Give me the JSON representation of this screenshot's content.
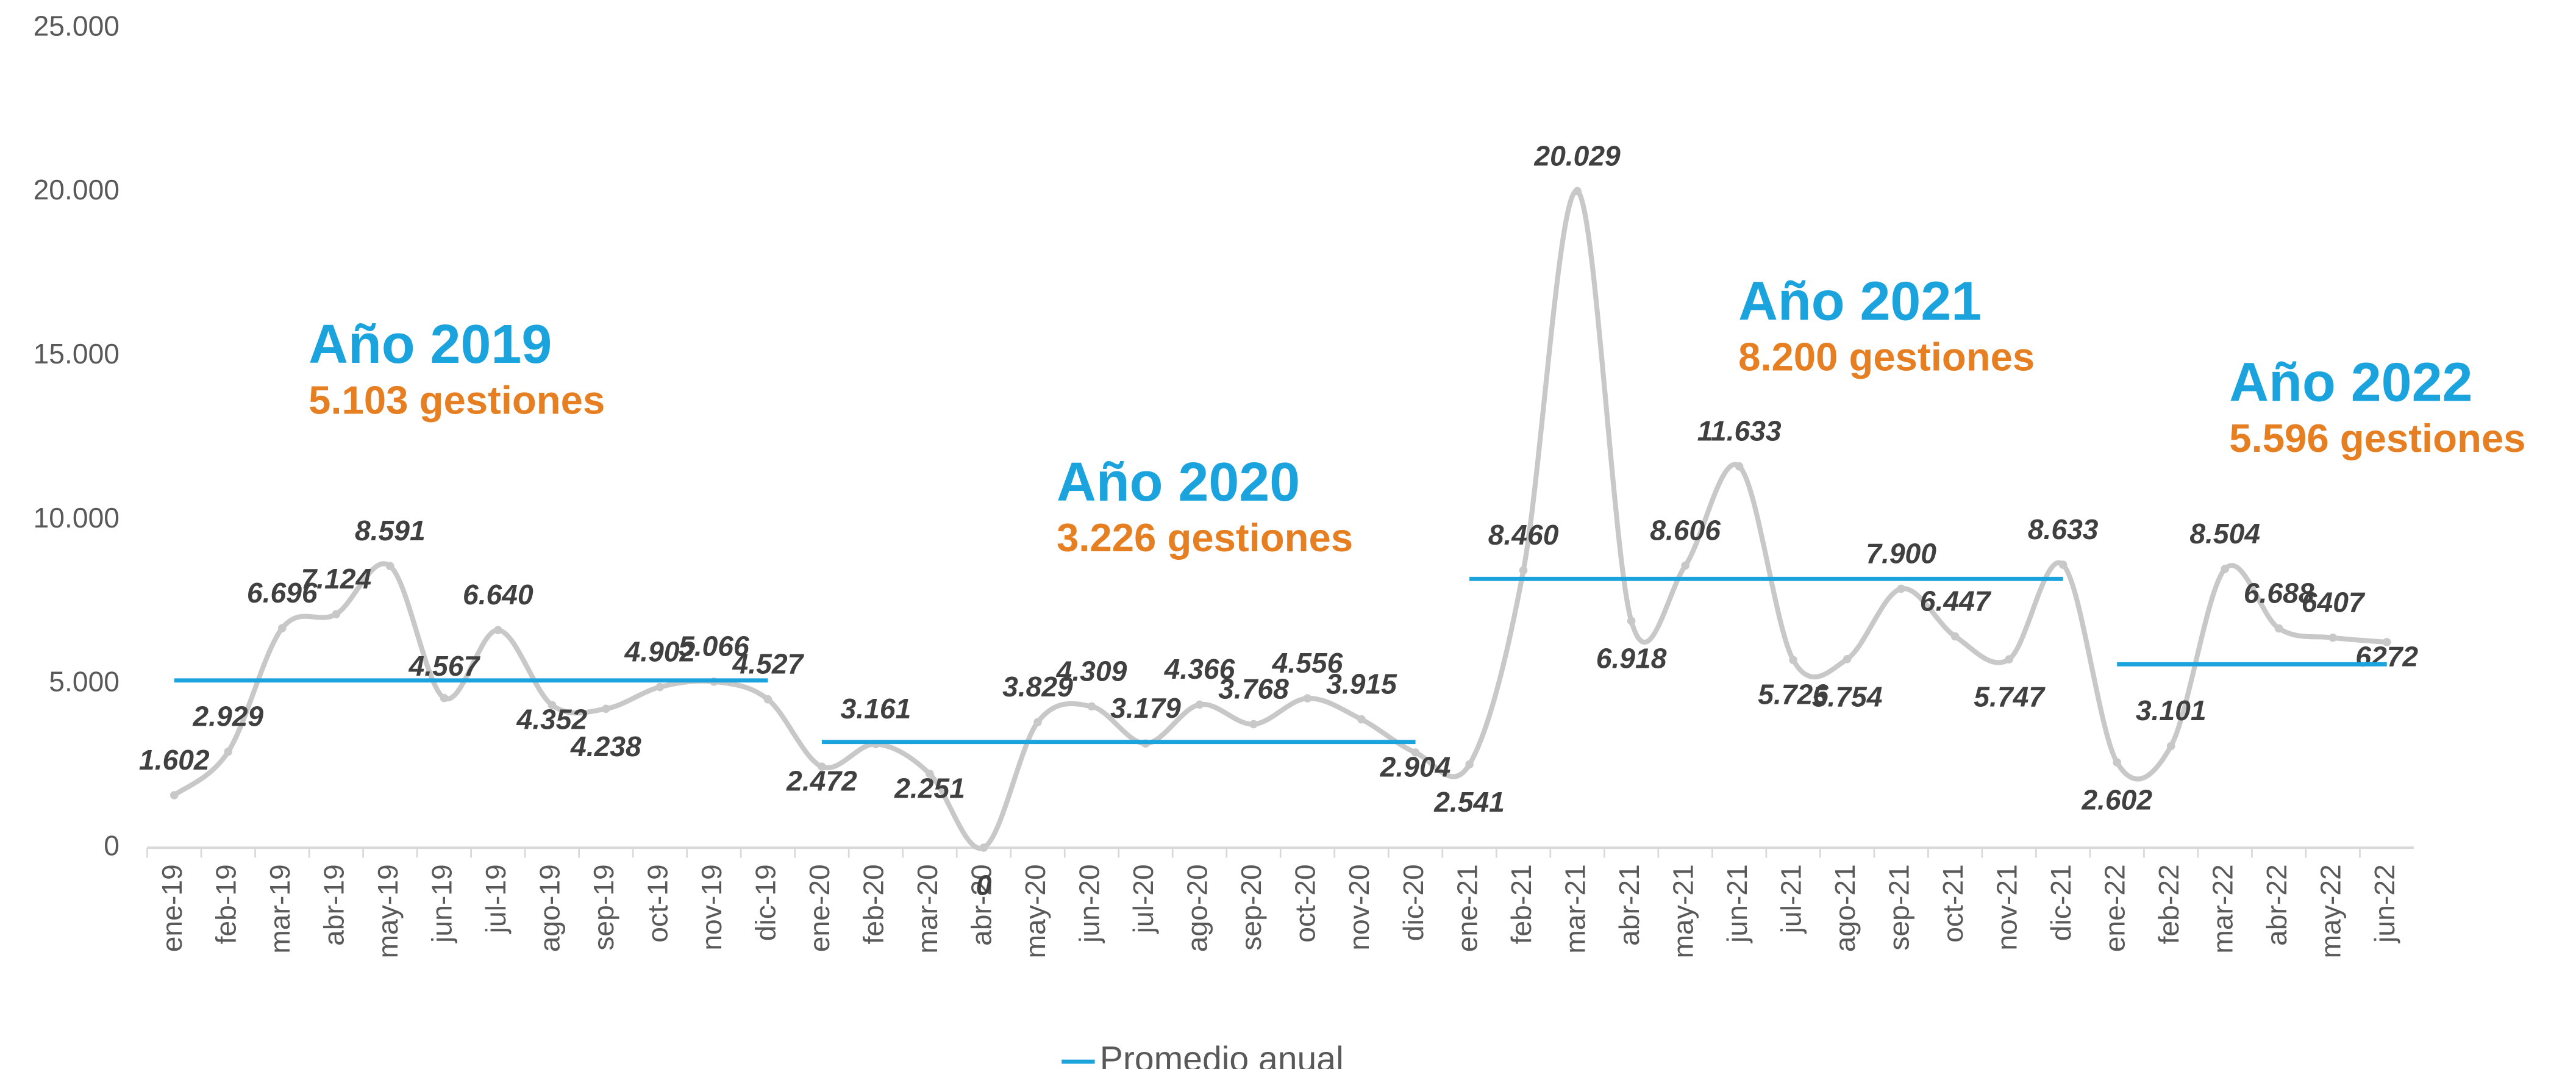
{
  "chart_data": {
    "type": "line",
    "categories": [
      "ene-19",
      "feb-19",
      "mar-19",
      "abr-19",
      "may-19",
      "jun-19",
      "jul-19",
      "ago-19",
      "sep-19",
      "oct-19",
      "nov-19",
      "dic-19",
      "ene-20",
      "feb-20",
      "mar-20",
      "abr-20",
      "may-20",
      "jun-20",
      "jul-20",
      "ago-20",
      "sep-20",
      "oct-20",
      "nov-20",
      "dic-20",
      "ene-21",
      "feb-21",
      "mar-21",
      "abr-21",
      "may-21",
      "jun-21",
      "jul-21",
      "ago-21",
      "sep-21",
      "oct-21",
      "nov-21",
      "dic-21",
      "ene-22",
      "feb-22",
      "mar-22",
      "abr-22",
      "may-22",
      "jun-22"
    ],
    "series": [
      {
        "color": "#c8c8c8",
        "values": [
          1602,
          2929,
          6696,
          7124,
          8591,
          4567,
          6640,
          4352,
          4238,
          4902,
          5066,
          4527,
          2472,
          3161,
          2251,
          0,
          3829,
          4309,
          3179,
          4366,
          3768,
          4556,
          3915,
          2904,
          2541,
          8460,
          20029,
          6918,
          8606,
          11633,
          5726,
          5754,
          7900,
          6447,
          5747,
          8633,
          2602,
          3101,
          8504,
          6688,
          6407,
          6272
        ],
        "value_labels": [
          "1.602",
          "2.929",
          "6.696",
          "7.124",
          "8.591",
          "4.567",
          "6.640",
          "4.352",
          "4.238",
          "4.902",
          "5.066",
          "4.527",
          "2.472",
          "3.161",
          "2.251",
          "0",
          "3.829",
          "4.309",
          "3.179",
          "4.366",
          "3.768",
          "4.556",
          "3.915",
          "2.904",
          "2.541",
          "8.460",
          "20.029",
          "6.918",
          "8.606",
          "11.633",
          "5.726",
          "5.754",
          "7.900",
          "6.447",
          "5.747",
          "8.633",
          "2.602",
          "3.101",
          "8.504",
          "6.688",
          "6407",
          "6272"
        ]
      },
      {
        "name": "Promedio anual",
        "color": "#1aa3dc",
        "values": [
          5103,
          5103,
          5103,
          5103,
          5103,
          5103,
          5103,
          5103,
          5103,
          5103,
          5103,
          5103,
          3226,
          3226,
          3226,
          3226,
          3226,
          3226,
          3226,
          3226,
          3226,
          3226,
          3226,
          3226,
          8200,
          8200,
          8200,
          8200,
          8200,
          8200,
          8200,
          8200,
          8200,
          8200,
          8200,
          8200,
          5596,
          5596,
          5596,
          5596,
          5596,
          5596
        ]
      }
    ],
    "annotations": [
      {
        "title": "Año 2019",
        "text": "5.103 gestiones"
      },
      {
        "title": "Año 2020",
        "text": "3.226 gestiones"
      },
      {
        "title": "Año 2021",
        "text": "8.200 gestiones"
      },
      {
        "title": "Año 2022",
        "text": "5.596 gestiones"
      }
    ],
    "ylim": [
      0,
      25000
    ],
    "yticks": [
      0,
      {
        "value": 5000,
        "label": "5.000"
      },
      {
        "value": 10000,
        "label": "10.000"
      },
      {
        "value": 15000,
        "label": "15.000"
      },
      {
        "value": 20000,
        "label": "20.000"
      },
      {
        "value": 25000,
        "label": "25.000"
      }
    ]
  }
}
